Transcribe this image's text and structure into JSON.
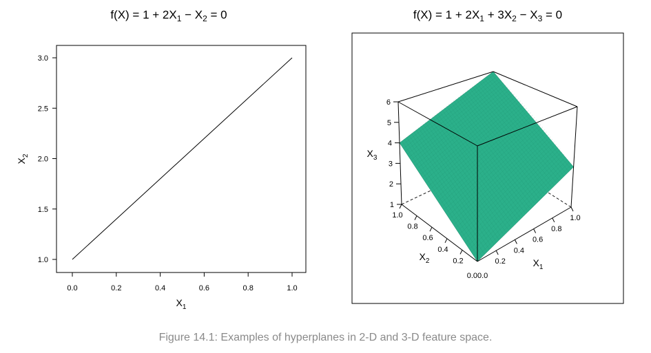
{
  "figure": {
    "caption": "Figure 14.1: Examples of hyperplanes in 2-D and 3-D feature space."
  },
  "colors": {
    "plane": "#2bb08a",
    "plane_edge": "#1f8f6f",
    "line": "#000000",
    "caption": "#8a8a8a"
  },
  "chart_data": [
    {
      "type": "line",
      "title": {
        "lhs": "f(X) = 1 + 2X",
        "s1": "1",
        "mid": " − X",
        "s2": "2",
        "rhs": " = 0"
      },
      "xlabel": {
        "base": "X",
        "sub": "1"
      },
      "ylabel": {
        "base": "X",
        "sub": "2"
      },
      "xlim": [
        0,
        1
      ],
      "ylim": [
        1,
        3
      ],
      "xticks": [
        "0.0",
        "0.2",
        "0.4",
        "0.6",
        "0.8",
        "1.0"
      ],
      "yticks": [
        "1.0",
        "1.5",
        "2.0",
        "2.5",
        "3.0"
      ],
      "series": [
        {
          "x": [
            0.0,
            1.0
          ],
          "y": [
            1.0,
            3.0
          ]
        }
      ],
      "grid": false
    },
    {
      "type": "surface",
      "title": {
        "lhs": "f(X) = 1 + 2X",
        "s1": "1",
        "mid1": " + 3X",
        "s2": "2",
        "mid2": " − X",
        "s3": "3",
        "rhs": " = 0"
      },
      "xlabel": {
        "base": "X",
        "sub": "1"
      },
      "ylabel": {
        "base": "X",
        "sub": "2"
      },
      "zlabel": {
        "base": "X",
        "sub": "3"
      },
      "x1_range": [
        0,
        1
      ],
      "x2_range": [
        0,
        1
      ],
      "x3_range": [
        1,
        6
      ],
      "x1_ticks": [
        "0.2",
        "0.4",
        "0.6",
        "0.8",
        "1.0"
      ],
      "x2_ticks": [
        "0.2",
        "0.4",
        "0.6",
        "0.8",
        "1.0"
      ],
      "x3_ticks": [
        "1",
        "2",
        "3",
        "4",
        "5",
        "6"
      ],
      "origin_label": "0.00.0",
      "plane": {
        "intercept": 1,
        "coef_x1": 2,
        "coef_x2": 3
      },
      "corners": [
        {
          "x1": 0,
          "x2": 0,
          "x3": 1
        },
        {
          "x1": 1,
          "x2": 0,
          "x3": 3
        },
        {
          "x1": 1,
          "x2": 1,
          "x3": 6
        },
        {
          "x1": 0,
          "x2": 1,
          "x3": 4
        }
      ]
    }
  ]
}
